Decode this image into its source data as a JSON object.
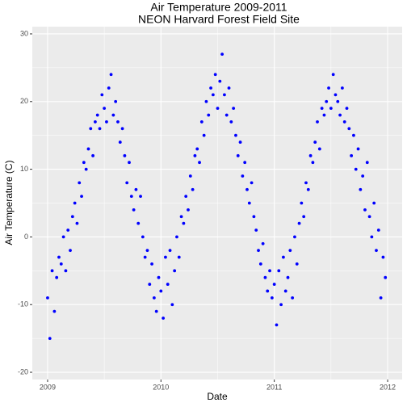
{
  "chart_data": {
    "type": "scatter",
    "title": "Air Temperature 2009-2011",
    "subtitle": "NEON Harvard Forest Field Site",
    "x_label": "Date",
    "y_label": "Air Temperature (C)",
    "color": "#0000ff",
    "grid": true,
    "xlim": [
      2008.865,
      2012.128
    ],
    "ylim": [
      -21.07,
      31.07
    ],
    "xticks": [
      2009,
      2010,
      2011,
      2012
    ],
    "yticks": [
      -20,
      -10,
      0,
      10,
      20,
      30
    ],
    "x": [
      2009,
      2009.02,
      2009.04,
      2009.06,
      2009.08,
      2009.1,
      2009.12,
      2009.14,
      2009.16,
      2009.18,
      2009.2,
      2009.22,
      2009.24,
      2009.26,
      2009.28,
      2009.3,
      2009.32,
      2009.34,
      2009.36,
      2009.38,
      2009.4,
      2009.42,
      2009.44,
      2009.46,
      2009.48,
      2009.5,
      2009.52,
      2009.54,
      2009.56,
      2009.58,
      2009.6,
      2009.62,
      2009.64,
      2009.66,
      2009.68,
      2009.7,
      2009.72,
      2009.74,
      2009.76,
      2009.78,
      2009.8,
      2009.82,
      2009.84,
      2009.86,
      2009.88,
      2009.9,
      2009.92,
      2009.94,
      2009.96,
      2009.98,
      2010,
      2010.02,
      2010.04,
      2010.06,
      2010.08,
      2010.1,
      2010.12,
      2010.14,
      2010.16,
      2010.18,
      2010.2,
      2010.22,
      2010.24,
      2010.26,
      2010.28,
      2010.3,
      2010.32,
      2010.34,
      2010.36,
      2010.38,
      2010.4,
      2010.42,
      2010.44,
      2010.46,
      2010.48,
      2010.5,
      2010.52,
      2010.54,
      2010.56,
      2010.58,
      2010.6,
      2010.62,
      2010.64,
      2010.66,
      2010.68,
      2010.7,
      2010.72,
      2010.74,
      2010.76,
      2010.78,
      2010.8,
      2010.82,
      2010.84,
      2010.86,
      2010.88,
      2010.9,
      2010.92,
      2010.94,
      2010.96,
      2010.98,
      2011,
      2011.02,
      2011.04,
      2011.06,
      2011.08,
      2011.1,
      2011.12,
      2011.14,
      2011.16,
      2011.18,
      2011.2,
      2011.22,
      2011.24,
      2011.26,
      2011.28,
      2011.3,
      2011.32,
      2011.34,
      2011.36,
      2011.38,
      2011.4,
      2011.42,
      2011.44,
      2011.46,
      2011.48,
      2011.5,
      2011.52,
      2011.54,
      2011.56,
      2011.58,
      2011.6,
      2011.62,
      2011.64,
      2011.66,
      2011.68,
      2011.7,
      2011.72,
      2011.74,
      2011.76,
      2011.78,
      2011.8,
      2011.82,
      2011.84,
      2011.86,
      2011.88,
      2011.9,
      2011.92,
      2011.94,
      2011.96,
      2011.98
    ],
    "values": [
      -9,
      -15,
      -5,
      -11,
      -6,
      -3,
      -4,
      0,
      -5,
      1,
      -2,
      3,
      5,
      2,
      8,
      6,
      11,
      10,
      13,
      16,
      12,
      17,
      18,
      16,
      21,
      19,
      17,
      22,
      24,
      18,
      20,
      17,
      14,
      16,
      12,
      8,
      11,
      6,
      4,
      7,
      2,
      6,
      0,
      -3,
      -2,
      -7,
      -4,
      -9,
      -11,
      -6,
      -8,
      -12,
      -3,
      -7,
      -2,
      -10,
      -5,
      0,
      -3,
      3,
      2,
      6,
      4,
      9,
      7,
      12,
      13,
      11,
      17,
      15,
      20,
      18,
      22,
      21,
      24,
      19,
      23,
      27,
      21,
      18,
      22,
      17,
      19,
      15,
      12,
      14,
      9,
      11,
      7,
      5,
      8,
      3,
      1,
      -2,
      -4,
      -1,
      -6,
      -8,
      -5,
      -9,
      -7,
      -13,
      -5,
      -10,
      -3,
      -8,
      -6,
      -2,
      -9,
      0,
      -4,
      2,
      5,
      3,
      8,
      7,
      12,
      11,
      14,
      17,
      13,
      19,
      18,
      20,
      22,
      19,
      24,
      21,
      20,
      18,
      22,
      17,
      19,
      16,
      12,
      15,
      10,
      13,
      7,
      9,
      4,
      11,
      3,
      0,
      5,
      -2,
      1,
      -9,
      -3,
      -6
    ]
  }
}
